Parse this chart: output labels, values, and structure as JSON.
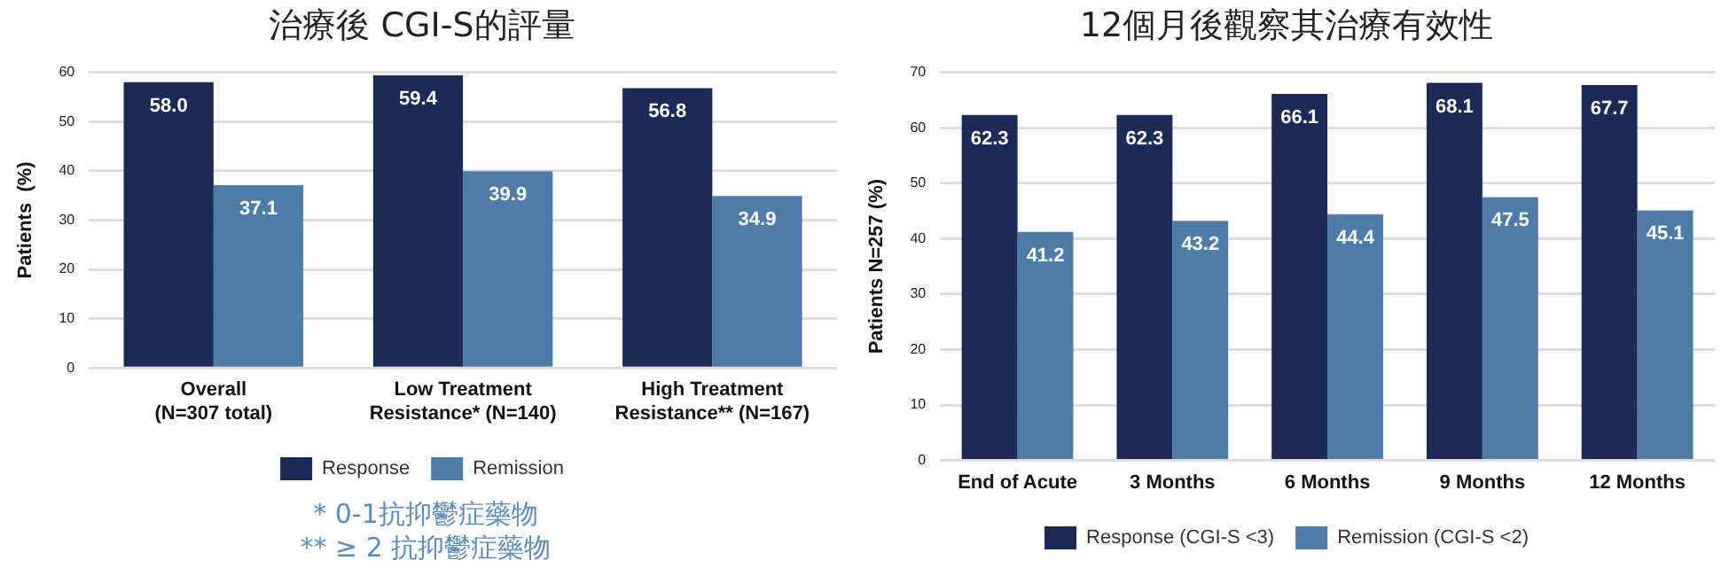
{
  "chart_data": [
    {
      "type": "bar",
      "title": "治療後 CGI-S的評量",
      "ylabel": "Patients  (%)",
      "categories": [
        "Overall\n(N=307 total)",
        "Low Treatment\nResistance* (N=140)",
        "High Treatment\nResistance** (N=167)"
      ],
      "series": [
        {
          "name": "Response",
          "color": "#1b2a56",
          "values": [
            58.0,
            59.4,
            56.8
          ],
          "value_labels": [
            "58.0",
            "59.4",
            "56.8"
          ]
        },
        {
          "name": "Remission",
          "color": "#4e7ca8",
          "values": [
            37.1,
            39.9,
            34.9
          ],
          "value_labels": [
            "37.1",
            "39.9",
            "34.9"
          ]
        }
      ],
      "ylim": [
        0,
        60
      ],
      "yticks": [
        0,
        10,
        20,
        30,
        40,
        50,
        60
      ],
      "grid": "y",
      "legend": "bottom",
      "annotations": [
        "* 0-1抗抑鬱症藥物",
        "** ≥ 2 抗抑鬱症藥物"
      ]
    },
    {
      "type": "bar",
      "title": "12個月後觀察其治療有效性",
      "ylabel": "Patients N=257 (%)",
      "categories": [
        "End of Acute",
        "3 Months",
        "6 Months",
        "9 Months",
        "12 Months"
      ],
      "series": [
        {
          "name": "Response (CGI-S <3)",
          "color": "#1b2a56",
          "values": [
            62.3,
            62.3,
            66.1,
            68.1,
            67.7
          ],
          "value_labels": [
            "62.3",
            "62.3",
            "66.1",
            "68.1",
            "67.7"
          ]
        },
        {
          "name": "Remission (CGI-S <2)",
          "color": "#4e7ca8",
          "values": [
            41.2,
            43.2,
            44.4,
            47.5,
            45.1
          ],
          "value_labels": [
            "41.2",
            "43.2",
            "44.4",
            "47.5",
            "45.1"
          ]
        }
      ],
      "ylim": [
        0,
        70
      ],
      "yticks": [
        0,
        10,
        20,
        30,
        40,
        50,
        60,
        70
      ],
      "grid": "y",
      "legend": "bottom"
    }
  ]
}
